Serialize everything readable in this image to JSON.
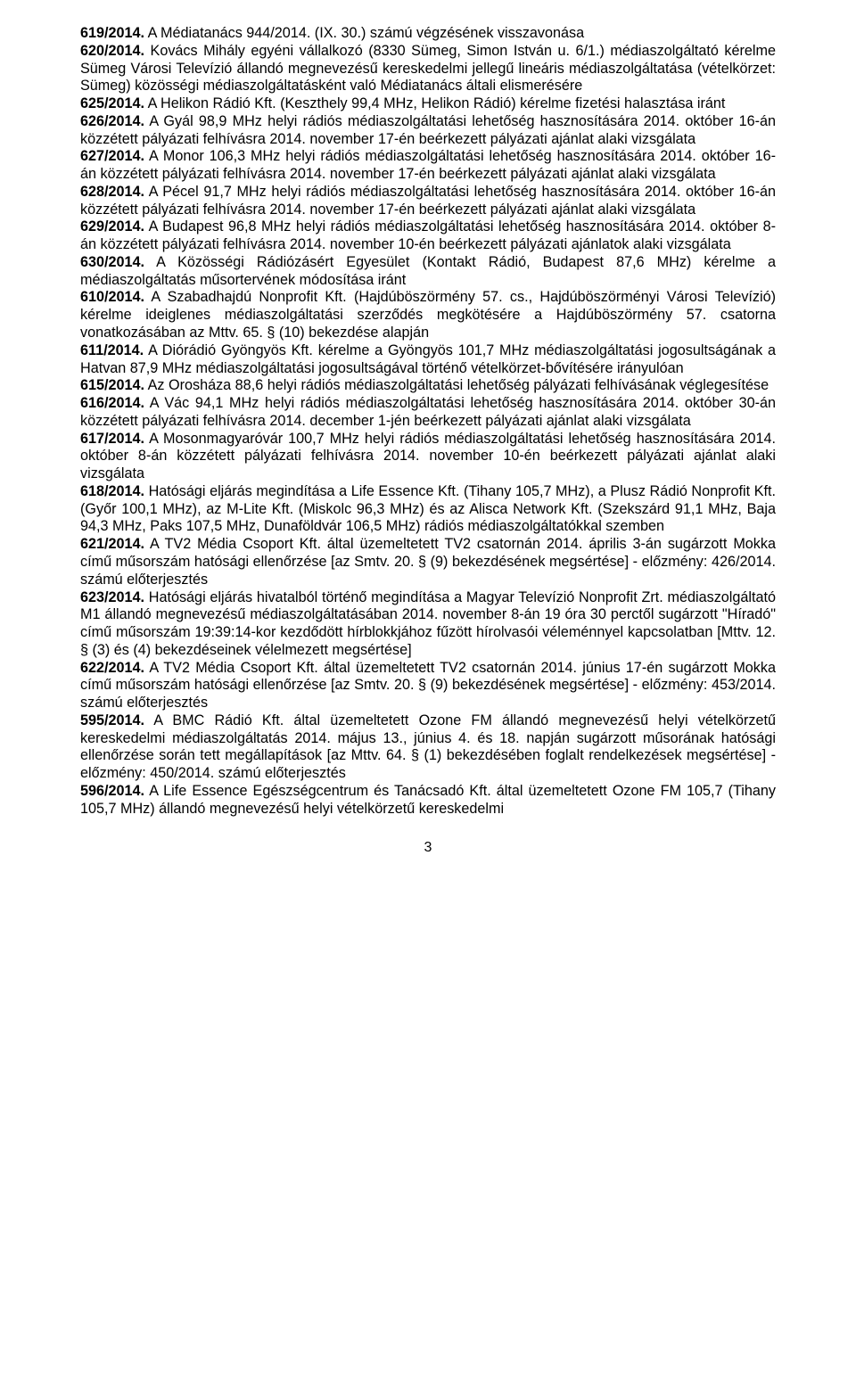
{
  "font": {
    "family": "Verdana",
    "size_pt": 12,
    "line_height": 1.22,
    "color": "#000000"
  },
  "page_number": "3",
  "entries": [
    {
      "num": "619/2014.",
      "text": " A Médiatanács 944/2014. (IX. 30.) számú végzésének visszavonása"
    },
    {
      "num": "620/2014.",
      "text": " Kovács Mihály egyéni vállalkozó (8330 Sümeg, Simon István u. 6/1.) médiaszolgáltató kérelme Sümeg Városi Televízió állandó megnevezésű kereskedelmi jellegű lineáris médiaszolgáltatása (vételkörzet: Sümeg) közösségi médiaszolgáltatásként való Médiatanács általi elismerésére"
    },
    {
      "num": "625/2014.",
      "text": " A Helikon Rádió Kft. (Keszthely 99,4 MHz, Helikon Rádió) kérelme fizetési halasztása iránt"
    },
    {
      "num": "626/2014.",
      "text": " A Gyál 98,9 MHz helyi rádiós médiaszolgáltatási lehetőség hasznosítására 2014. október 16-án közzétett pályázati felhívásra 2014. november 17-én beérkezett pályázati ajánlat alaki vizsgálata"
    },
    {
      "num": "627/2014.",
      "text": " A Monor 106,3 MHz helyi rádiós médiaszolgáltatási lehetőség hasznosítására 2014. október 16-án közzétett pályázati felhívásra 2014. november 17-én beérkezett pályázati ajánlat alaki vizsgálata"
    },
    {
      "num": "628/2014.",
      "text": " A Pécel 91,7 MHz helyi rádiós médiaszolgáltatási lehetőség hasznosítására 2014. október 16-án közzétett pályázati felhívásra 2014. november 17-én beérkezett pályázati ajánlat alaki vizsgálata"
    },
    {
      "num": "629/2014.",
      "text": " A Budapest 96,8 MHz helyi rádiós médiaszolgáltatási lehetőség hasznosítására 2014. október 8-án közzétett pályázati felhívásra 2014. november 10-én beérkezett pályázati ajánlatok alaki vizsgálata"
    },
    {
      "num": "630/2014.",
      "text": " A Közösségi Rádiózásért Egyesület (Kontakt Rádió, Budapest 87,6 MHz) kérelme a médiaszolgáltatás műsortervének módosítása iránt"
    },
    {
      "num": "610/2014.",
      "text": " A Szabadhajdú Nonprofit Kft. (Hajdúböszörmény 57. cs., Hajdúböszörményi Városi Televízió) kérelme ideiglenes médiaszolgáltatási szerződés megkötésére a Hajdúböszörmény 57. csatorna vonatkozásában az Mttv. 65. § (10) bekezdése alapján"
    },
    {
      "num": "611/2014.",
      "text": " A Diórádió Gyöngyös Kft. kérelme a Gyöngyös 101,7 MHz médiaszolgáltatási jogosultságának a Hatvan 87,9 MHz médiaszolgáltatási jogosultságával történő vételkörzet-bővítésére irányulóan"
    },
    {
      "num": "615/2014.",
      "text": " Az Orosháza 88,6 helyi rádiós médiaszolgáltatási lehetőség pályázati felhívásának véglegesítése"
    },
    {
      "num": "616/2014.",
      "text": " A Vác 94,1 MHz helyi rádiós médiaszolgáltatási lehetőség hasznosítására 2014. október 30-án közzétett pályázati felhívásra 2014. december 1-jén beérkezett pályázati ajánlat alaki vizsgálata"
    },
    {
      "num": "617/2014.",
      "text": " A Mosonmagyaróvár 100,7 MHz helyi rádiós médiaszolgáltatási lehetőség hasznosítására 2014. október 8-án közzétett pályázati felhívásra 2014. november 10-én beérkezett pályázati ajánlat alaki vizsgálata"
    },
    {
      "num": "618/2014.",
      "text": " Hatósági eljárás megindítása a Life Essence Kft. (Tihany 105,7 MHz), a Plusz Rádió Nonprofit Kft. (Győr 100,1 MHz), az M-Lite Kft. (Miskolc 96,3 MHz) és az Alisca Network Kft. (Szekszárd 91,1 MHz, Baja 94,3 MHz, Paks 107,5 MHz, Dunaföldvár 106,5 MHz) rádiós médiaszolgáltatókkal szemben"
    },
    {
      "num": "621/2014.",
      "text": " A TV2 Média Csoport Kft. által üzemeltetett TV2 csatornán 2014. április 3-án sugárzott Mokka című műsorszám hatósági ellenőrzése [az Smtv. 20. § (9) bekezdésének megsértése] - előzmény: 426/2014. számú előterjesztés"
    },
    {
      "num": "623/2014.",
      "text": " Hatósági eljárás hivatalból történő megindítása a Magyar Televízió Nonprofit Zrt. médiaszolgáltató M1 állandó megnevezésű médiaszolgáltatásában 2014. november 8-án 19 óra 30 perctől sugárzott \"Híradó\" című műsorszám 19:39:14-kor kezdődött hírblokkjához fűzött hírolvasói véleménnyel kapcsolatban [Mttv. 12. § (3) és (4) bekezdéseinek vélelmezett megsértése]"
    },
    {
      "num": "622/2014.",
      "text": " A TV2 Média Csoport Kft. által üzemeltetett TV2 csatornán 2014. június 17-én sugárzott Mokka című műsorszám hatósági ellenőrzése [az Smtv. 20. § (9) bekezdésének megsértése] - előzmény: 453/2014. számú előterjesztés"
    },
    {
      "num": "595/2014.",
      "text": " A BMC Rádió Kft. által üzemeltetett Ozone FM állandó megnevezésű helyi vételkörzetű kereskedelmi médiaszolgáltatás 2014. május 13., június 4. és 18. napján sugárzott műsorának hatósági ellenőrzése során tett megállapítások [az Mttv. 64. § (1) bekezdésében foglalt rendelkezések megsértése] - előzmény: 450/2014. számú előterjesztés"
    },
    {
      "num": "596/2014.",
      "text": " A Life Essence Egészségcentrum és Tanácsadó Kft. által üzemeltetett Ozone FM 105,7 (Tihany 105,7 MHz) állandó megnevezésű helyi vételkörzetű kereskedelmi"
    }
  ]
}
